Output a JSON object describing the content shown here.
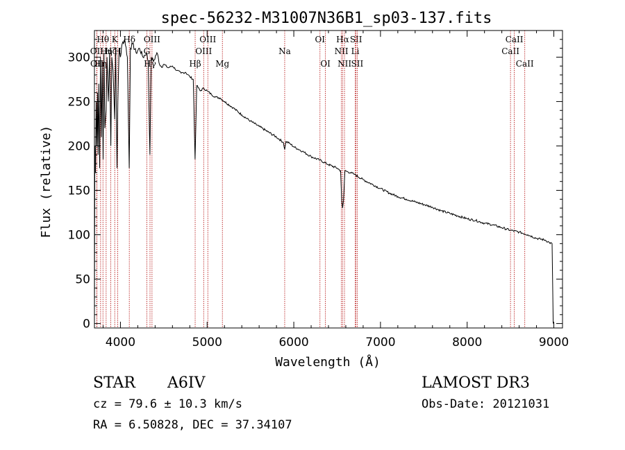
{
  "chart_data": {
    "type": "line",
    "title": "spec-56232-M31007N36B1_sp03-137.fits",
    "xlabel": "Wavelength (Å)",
    "ylabel": "Flux (relative)",
    "xlim": [
      3700,
      9100
    ],
    "ylim": [
      -5,
      330
    ],
    "xticks": [
      4000,
      5000,
      6000,
      7000,
      8000,
      9000
    ],
    "yticks": [
      0,
      50,
      100,
      150,
      200,
      250,
      300
    ],
    "series": [
      {
        "name": "spectrum",
        "points": [
          [
            3700,
            0
          ],
          [
            3702,
            80
          ],
          [
            3705,
            200
          ],
          [
            3712,
            170
          ],
          [
            3720,
            250
          ],
          [
            3728,
            200
          ],
          [
            3735,
            260
          ],
          [
            3742,
            190
          ],
          [
            3750,
            270
          ],
          [
            3760,
            175
          ],
          [
            3770,
            300
          ],
          [
            3780,
            210
          ],
          [
            3790,
            295
          ],
          [
            3800,
            185
          ],
          [
            3810,
            305
          ],
          [
            3820,
            220
          ],
          [
            3835,
            240
          ],
          [
            3845,
            300
          ],
          [
            3860,
            250
          ],
          [
            3875,
            305
          ],
          [
            3889,
            200
          ],
          [
            3900,
            300
          ],
          [
            3915,
            285
          ],
          [
            3933,
            230
          ],
          [
            3945,
            310
          ],
          [
            3960,
            175
          ],
          [
            3970,
            250
          ],
          [
            3985,
            310
          ],
          [
            4000,
            300
          ],
          [
            4020,
            315
          ],
          [
            4050,
            320
          ],
          [
            4080,
            300
          ],
          [
            4101,
            175
          ],
          [
            4115,
            310
          ],
          [
            4140,
            315
          ],
          [
            4180,
            305
          ],
          [
            4220,
            310
          ],
          [
            4260,
            300
          ],
          [
            4300,
            305
          ],
          [
            4320,
            295
          ],
          [
            4340,
            190
          ],
          [
            4355,
            300
          ],
          [
            4380,
            295
          ],
          [
            4420,
            305
          ],
          [
            4460,
            290
          ],
          [
            4500,
            292
          ],
          [
            4550,
            288
          ],
          [
            4600,
            290
          ],
          [
            4650,
            285
          ],
          [
            4700,
            282
          ],
          [
            4750,
            283
          ],
          [
            4800,
            278
          ],
          [
            4840,
            275
          ],
          [
            4861,
            185
          ],
          [
            4880,
            268
          ],
          [
            4920,
            262
          ],
          [
            4960,
            265
          ],
          [
            5000,
            262
          ],
          [
            5050,
            258
          ],
          [
            5100,
            255
          ],
          [
            5150,
            254
          ],
          [
            5200,
            250
          ],
          [
            5300,
            243
          ],
          [
            5400,
            235
          ],
          [
            5500,
            228
          ],
          [
            5600,
            222
          ],
          [
            5700,
            216
          ],
          [
            5800,
            210
          ],
          [
            5880,
            204
          ],
          [
            5895,
            196
          ],
          [
            5910,
            205
          ],
          [
            5950,
            203
          ],
          [
            6000,
            199
          ],
          [
            6100,
            194
          ],
          [
            6200,
            188
          ],
          [
            6300,
            184
          ],
          [
            6400,
            179
          ],
          [
            6500,
            175
          ],
          [
            6540,
            172
          ],
          [
            6553,
            138
          ],
          [
            6563,
            130
          ],
          [
            6573,
            138
          ],
          [
            6590,
            172
          ],
          [
            6650,
            170
          ],
          [
            6700,
            168
          ],
          [
            6800,
            162
          ],
          [
            6900,
            157
          ],
          [
            7000,
            152
          ],
          [
            7100,
            147
          ],
          [
            7200,
            143
          ],
          [
            7300,
            140
          ],
          [
            7400,
            137
          ],
          [
            7500,
            134
          ],
          [
            7600,
            131
          ],
          [
            7700,
            127
          ],
          [
            7800,
            124
          ],
          [
            7900,
            121
          ],
          [
            8000,
            118
          ],
          [
            8100,
            116
          ],
          [
            8200,
            113
          ],
          [
            8300,
            111
          ],
          [
            8400,
            108
          ],
          [
            8500,
            105
          ],
          [
            8600,
            103
          ],
          [
            8700,
            100
          ],
          [
            8800,
            96
          ],
          [
            8900,
            94
          ],
          [
            8950,
            91
          ],
          [
            8980,
            90
          ],
          [
            8993,
            0
          ]
        ]
      }
    ],
    "lines": [
      {
        "x": 3727,
        "label": "OII",
        "row": 1
      },
      {
        "x": 3729,
        "label": "OII",
        "row": 2
      },
      {
        "x": 3771,
        "label": "Hη",
        "row": 2
      },
      {
        "x": 3798,
        "label": "Hθ",
        "row": 0
      },
      {
        "x": 3835,
        "label": "Hη",
        "row": 1
      },
      {
        "x": 3889,
        "label": "Hζ",
        "row": 1
      },
      {
        "x": 3934,
        "label": "K",
        "row": 0
      },
      {
        "x": 3969,
        "label": "H",
        "row": 1
      },
      {
        "x": 4102,
        "label": "Hδ",
        "row": 0
      },
      {
        "x": 4304,
        "label": "G",
        "row": 1
      },
      {
        "x": 4341,
        "label": "Hγ",
        "row": 2
      },
      {
        "x": 4364,
        "label": "OIII",
        "row": 0
      },
      {
        "x": 4862,
        "label": "Hβ",
        "row": 2
      },
      {
        "x": 4960,
        "label": "OIII",
        "row": 1
      },
      {
        "x": 5008,
        "label": "OIII",
        "row": 0
      },
      {
        "x": 5176,
        "label": "Mg",
        "row": 2
      },
      {
        "x": 5895,
        "label": "Na",
        "row": 1
      },
      {
        "x": 6302,
        "label": "OI",
        "row": 0
      },
      {
        "x": 6365,
        "label": "OI",
        "row": 2
      },
      {
        "x": 6549,
        "label": "NII",
        "row": 1
      },
      {
        "x": 6564,
        "label": "Hα",
        "row": 0
      },
      {
        "x": 6585,
        "label": "NII",
        "row": 2
      },
      {
        "x": 6709,
        "label": "Li",
        "row": 1
      },
      {
        "x": 6718,
        "label": "SII",
        "row": 0
      },
      {
        "x": 6732,
        "label": "SII",
        "row": 2
      },
      {
        "x": 8500,
        "label": "CaII",
        "row": 1
      },
      {
        "x": 8544,
        "label": "CaII",
        "row": 0
      },
      {
        "x": 8665,
        "label": "CaII",
        "row": 2
      }
    ]
  },
  "info": {
    "class": "STAR",
    "subclass": "A6IV",
    "survey": "LAMOST DR3",
    "redshift": "cz = 79.6 ± 10.3 km/s",
    "obs_date": "Obs-Date: 20121031",
    "coords": "RA =   6.50828, DEC =  37.34107"
  },
  "colors": {
    "line_marker": "#b00000",
    "spectrum": "#000000"
  }
}
